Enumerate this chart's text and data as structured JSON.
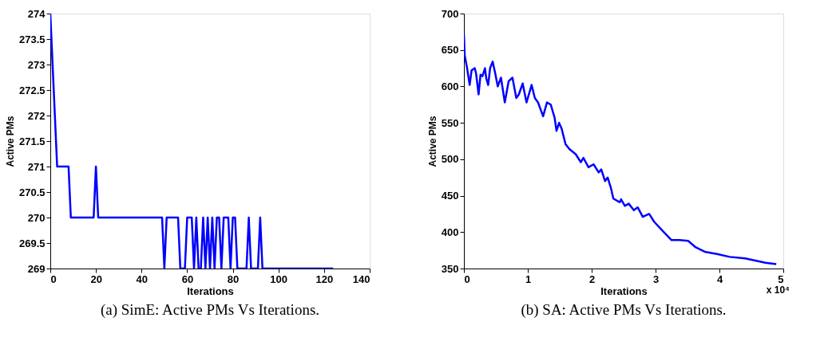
{
  "chart_data": [
    {
      "type": "line",
      "title": "(a) SimE: Active PMs Vs Iterations.",
      "xlabel": "Iterations",
      "ylabel": "Active PMs",
      "xlim": [
        0,
        140
      ],
      "xticks": [
        0,
        20,
        40,
        60,
        80,
        100,
        120,
        140
      ],
      "ylim": [
        269,
        274
      ],
      "yticks": [
        269,
        269.5,
        270,
        270.5,
        271,
        271.5,
        272,
        272.5,
        273,
        273.5,
        274
      ],
      "grid": false,
      "line_style": "solid",
      "series": [
        {
          "color": "#0000ff",
          "x": [
            0,
            3,
            8,
            9,
            19,
            20,
            21,
            49,
            50,
            51,
            56,
            57,
            59,
            60,
            62,
            63,
            64,
            65,
            66,
            67,
            68,
            69,
            70,
            71,
            72,
            73,
            74,
            75,
            76,
            78,
            79,
            80,
            81,
            82,
            86,
            87,
            88,
            91,
            92,
            93,
            124
          ],
          "values": [
            274,
            271,
            271,
            270,
            270,
            271,
            270,
            270,
            269,
            270,
            270,
            269,
            269,
            270,
            270,
            269,
            270,
            269,
            269,
            270,
            269,
            270,
            269,
            270,
            269,
            270,
            270,
            269,
            270,
            270,
            269,
            270,
            270,
            269,
            269,
            270,
            269,
            269,
            270,
            269,
            269
          ]
        }
      ]
    },
    {
      "type": "line",
      "title": "(b) SA: Active PMs Vs Iterations.",
      "xlabel": "Iterations",
      "ylabel": "Active PMs",
      "xlim": [
        0,
        5
      ],
      "xticks": [
        0,
        1,
        2,
        3,
        4,
        5
      ],
      "ylim": [
        350,
        700
      ],
      "yticks": [
        350,
        400,
        450,
        500,
        550,
        600,
        650,
        700
      ],
      "grid": false,
      "line_style": "solid",
      "annotations": [
        "x 10⁴"
      ],
      "series": [
        {
          "color": "#0000ff",
          "x": [
            0,
            0.012,
            0.05,
            0.09,
            0.12,
            0.17,
            0.19,
            0.23,
            0.26,
            0.29,
            0.33,
            0.35,
            0.38,
            0.41,
            0.45,
            0.49,
            0.53,
            0.58,
            0.64,
            0.7,
            0.76,
            0.82,
            0.86,
            0.92,
            0.98,
            1.06,
            1.11,
            1.16,
            1.24,
            1.3,
            1.36,
            1.42,
            1.45,
            1.49,
            1.53,
            1.59,
            1.65,
            1.75,
            1.83,
            1.87,
            1.95,
            2.03,
            2.11,
            2.15,
            2.21,
            2.25,
            2.3,
            2.34,
            2.44,
            2.46,
            2.52,
            2.58,
            2.66,
            2.72,
            2.8,
            2.9,
            2.98,
            3.13,
            3.25,
            3.37,
            3.51,
            3.63,
            3.77,
            3.96,
            4.16,
            4.4,
            4.56,
            4.72,
            4.89
          ],
          "values": [
            672,
            643,
            625,
            602,
            622,
            625,
            618,
            589,
            616,
            614,
            625,
            611,
            602,
            625,
            634,
            618,
            600,
            612,
            578,
            607,
            612,
            584,
            589,
            604,
            578,
            602,
            584,
            578,
            559,
            578,
            575,
            557,
            539,
            550,
            542,
            521,
            514,
            507,
            496,
            502,
            489,
            493,
            482,
            486,
            470,
            475,
            461,
            446,
            441,
            445,
            436,
            439,
            430,
            434,
            421,
            425,
            414,
            400,
            389,
            389,
            388,
            379,
            373,
            370,
            366,
            364,
            361,
            358,
            356
          ]
        }
      ]
    }
  ]
}
